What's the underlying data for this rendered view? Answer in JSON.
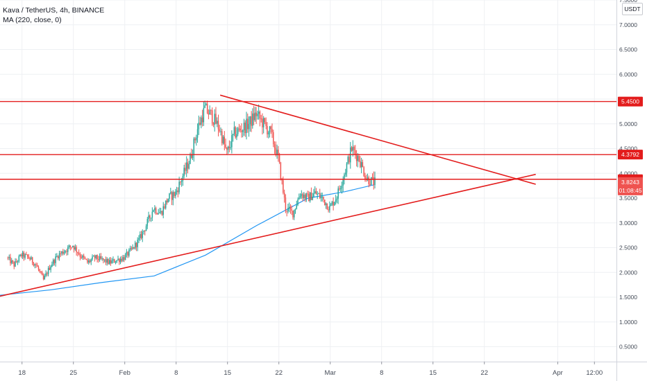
{
  "header": {
    "symbol_line": "Kava / TetherUS, 4h, BINANCE",
    "indicator_line": "MA (220, close, 0)"
  },
  "currency_button": "USDT",
  "colors": {
    "background": "#ffffff",
    "grid": "#eef0f3",
    "candle_up": "#26a69a",
    "candle_down": "#ef5350",
    "ma": "#2196f3",
    "drawing": "#e31c1c",
    "price_tag": "#ef5350",
    "axis_text": "#444b57"
  },
  "chart_data": {
    "type": "candlestick",
    "title": "Kava / TetherUS, 4h, BINANCE",
    "y_axis": {
      "min": 0.2,
      "max": 7.5,
      "ticks": [
        "0.5000",
        "1.0000",
        "1.5000",
        "2.0000",
        "2.5000",
        "3.0000",
        "3.5000",
        "4.0000",
        "4.5000",
        "5.0000",
        "5.5000",
        "6.0000",
        "6.5000",
        "7.0000",
        "7.5000"
      ]
    },
    "x_axis": {
      "start": "2021-01-15",
      "end": "2021-04-09",
      "ticks": [
        {
          "label": "18",
          "date": "2021-01-18"
        },
        {
          "label": "25",
          "date": "2021-01-25"
        },
        {
          "label": "Feb",
          "date": "2021-02-01"
        },
        {
          "label": "8",
          "date": "2021-02-08"
        },
        {
          "label": "15",
          "date": "2021-02-15"
        },
        {
          "label": "22",
          "date": "2021-02-22"
        },
        {
          "label": "Mar",
          "date": "2021-03-01"
        },
        {
          "label": "8",
          "date": "2021-03-08"
        },
        {
          "label": "15",
          "date": "2021-03-15"
        },
        {
          "label": "22",
          "date": "2021-03-22"
        },
        {
          "label": "Apr",
          "date": "2021-04-01"
        },
        {
          "label": "12:00",
          "date": "2021-04-06"
        }
      ]
    },
    "price_path": [
      [
        "2021-01-16",
        2.3
      ],
      [
        "2021-01-17",
        2.15
      ],
      [
        "2021-01-18",
        2.35
      ],
      [
        "2021-01-19",
        2.3
      ],
      [
        "2021-01-20",
        2.15
      ],
      [
        "2021-01-21",
        1.85
      ],
      [
        "2021-01-22",
        2.15
      ],
      [
        "2021-01-23",
        2.35
      ],
      [
        "2021-01-24",
        2.45
      ],
      [
        "2021-01-25",
        2.55
      ],
      [
        "2021-01-26",
        2.35
      ],
      [
        "2021-01-27",
        2.2
      ],
      [
        "2021-01-28",
        2.3
      ],
      [
        "2021-01-29",
        2.25
      ],
      [
        "2021-01-30",
        2.2
      ],
      [
        "2021-01-31",
        2.25
      ],
      [
        "2021-02-01",
        2.3
      ],
      [
        "2021-02-02",
        2.45
      ],
      [
        "2021-02-03",
        2.65
      ],
      [
        "2021-02-04",
        2.95
      ],
      [
        "2021-02-05",
        3.3
      ],
      [
        "2021-02-06",
        3.2
      ],
      [
        "2021-02-07",
        3.5
      ],
      [
        "2021-02-08",
        3.6
      ],
      [
        "2021-02-09",
        3.95
      ],
      [
        "2021-02-10",
        4.3
      ],
      [
        "2021-02-11",
        4.9
      ],
      [
        "2021-02-12",
        5.3
      ],
      [
        "2021-02-13",
        5.15
      ],
      [
        "2021-02-14",
        4.9
      ],
      [
        "2021-02-15",
        4.4
      ],
      [
        "2021-02-16",
        4.8
      ],
      [
        "2021-02-17",
        4.9
      ],
      [
        "2021-02-18",
        5.0
      ],
      [
        "2021-02-19",
        5.2
      ],
      [
        "2021-02-20",
        5.0
      ],
      [
        "2021-02-21",
        4.8
      ],
      [
        "2021-02-22",
        4.3
      ],
      [
        "2021-02-23",
        3.3
      ],
      [
        "2021-02-24",
        3.2
      ],
      [
        "2021-02-25",
        3.6
      ],
      [
        "2021-02-26",
        3.5
      ],
      [
        "2021-02-27",
        3.6
      ],
      [
        "2021-02-28",
        3.5
      ],
      [
        "2021-03-01",
        3.3
      ],
      [
        "2021-03-02",
        3.55
      ],
      [
        "2021-03-03",
        4.0
      ],
      [
        "2021-03-04",
        4.5
      ],
      [
        "2021-03-05",
        4.3
      ],
      [
        "2021-03-06",
        3.9
      ],
      [
        "2021-03-07",
        3.82
      ]
    ],
    "ma_220": [
      [
        "2021-01-15",
        1.54
      ],
      [
        "2021-01-22",
        1.65
      ],
      [
        "2021-01-29",
        1.8
      ],
      [
        "2021-02-05",
        1.93
      ],
      [
        "2021-02-12",
        2.35
      ],
      [
        "2021-02-19",
        2.95
      ],
      [
        "2021-02-26",
        3.5
      ],
      [
        "2021-03-03",
        3.63
      ],
      [
        "2021-03-07",
        3.77
      ]
    ],
    "horizontal_lines": [
      5.45,
      4.3792,
      3.8813
    ],
    "trendlines": [
      {
        "from": [
          "2021-02-14",
          5.58
        ],
        "to": [
          "2021-03-29",
          3.78
        ]
      },
      {
        "from": [
          "2021-01-15",
          1.52
        ],
        "to": [
          "2021-03-29",
          3.98
        ]
      }
    ],
    "price_labels": [
      {
        "text": "5.4500",
        "value": 5.45
      },
      {
        "text": "4.3792",
        "value": 4.3792
      },
      {
        "text": "3.8813",
        "value": 3.8813
      }
    ],
    "current_price": {
      "text": "3.8243",
      "countdown": "01:08:45",
      "value": 3.8243
    }
  }
}
